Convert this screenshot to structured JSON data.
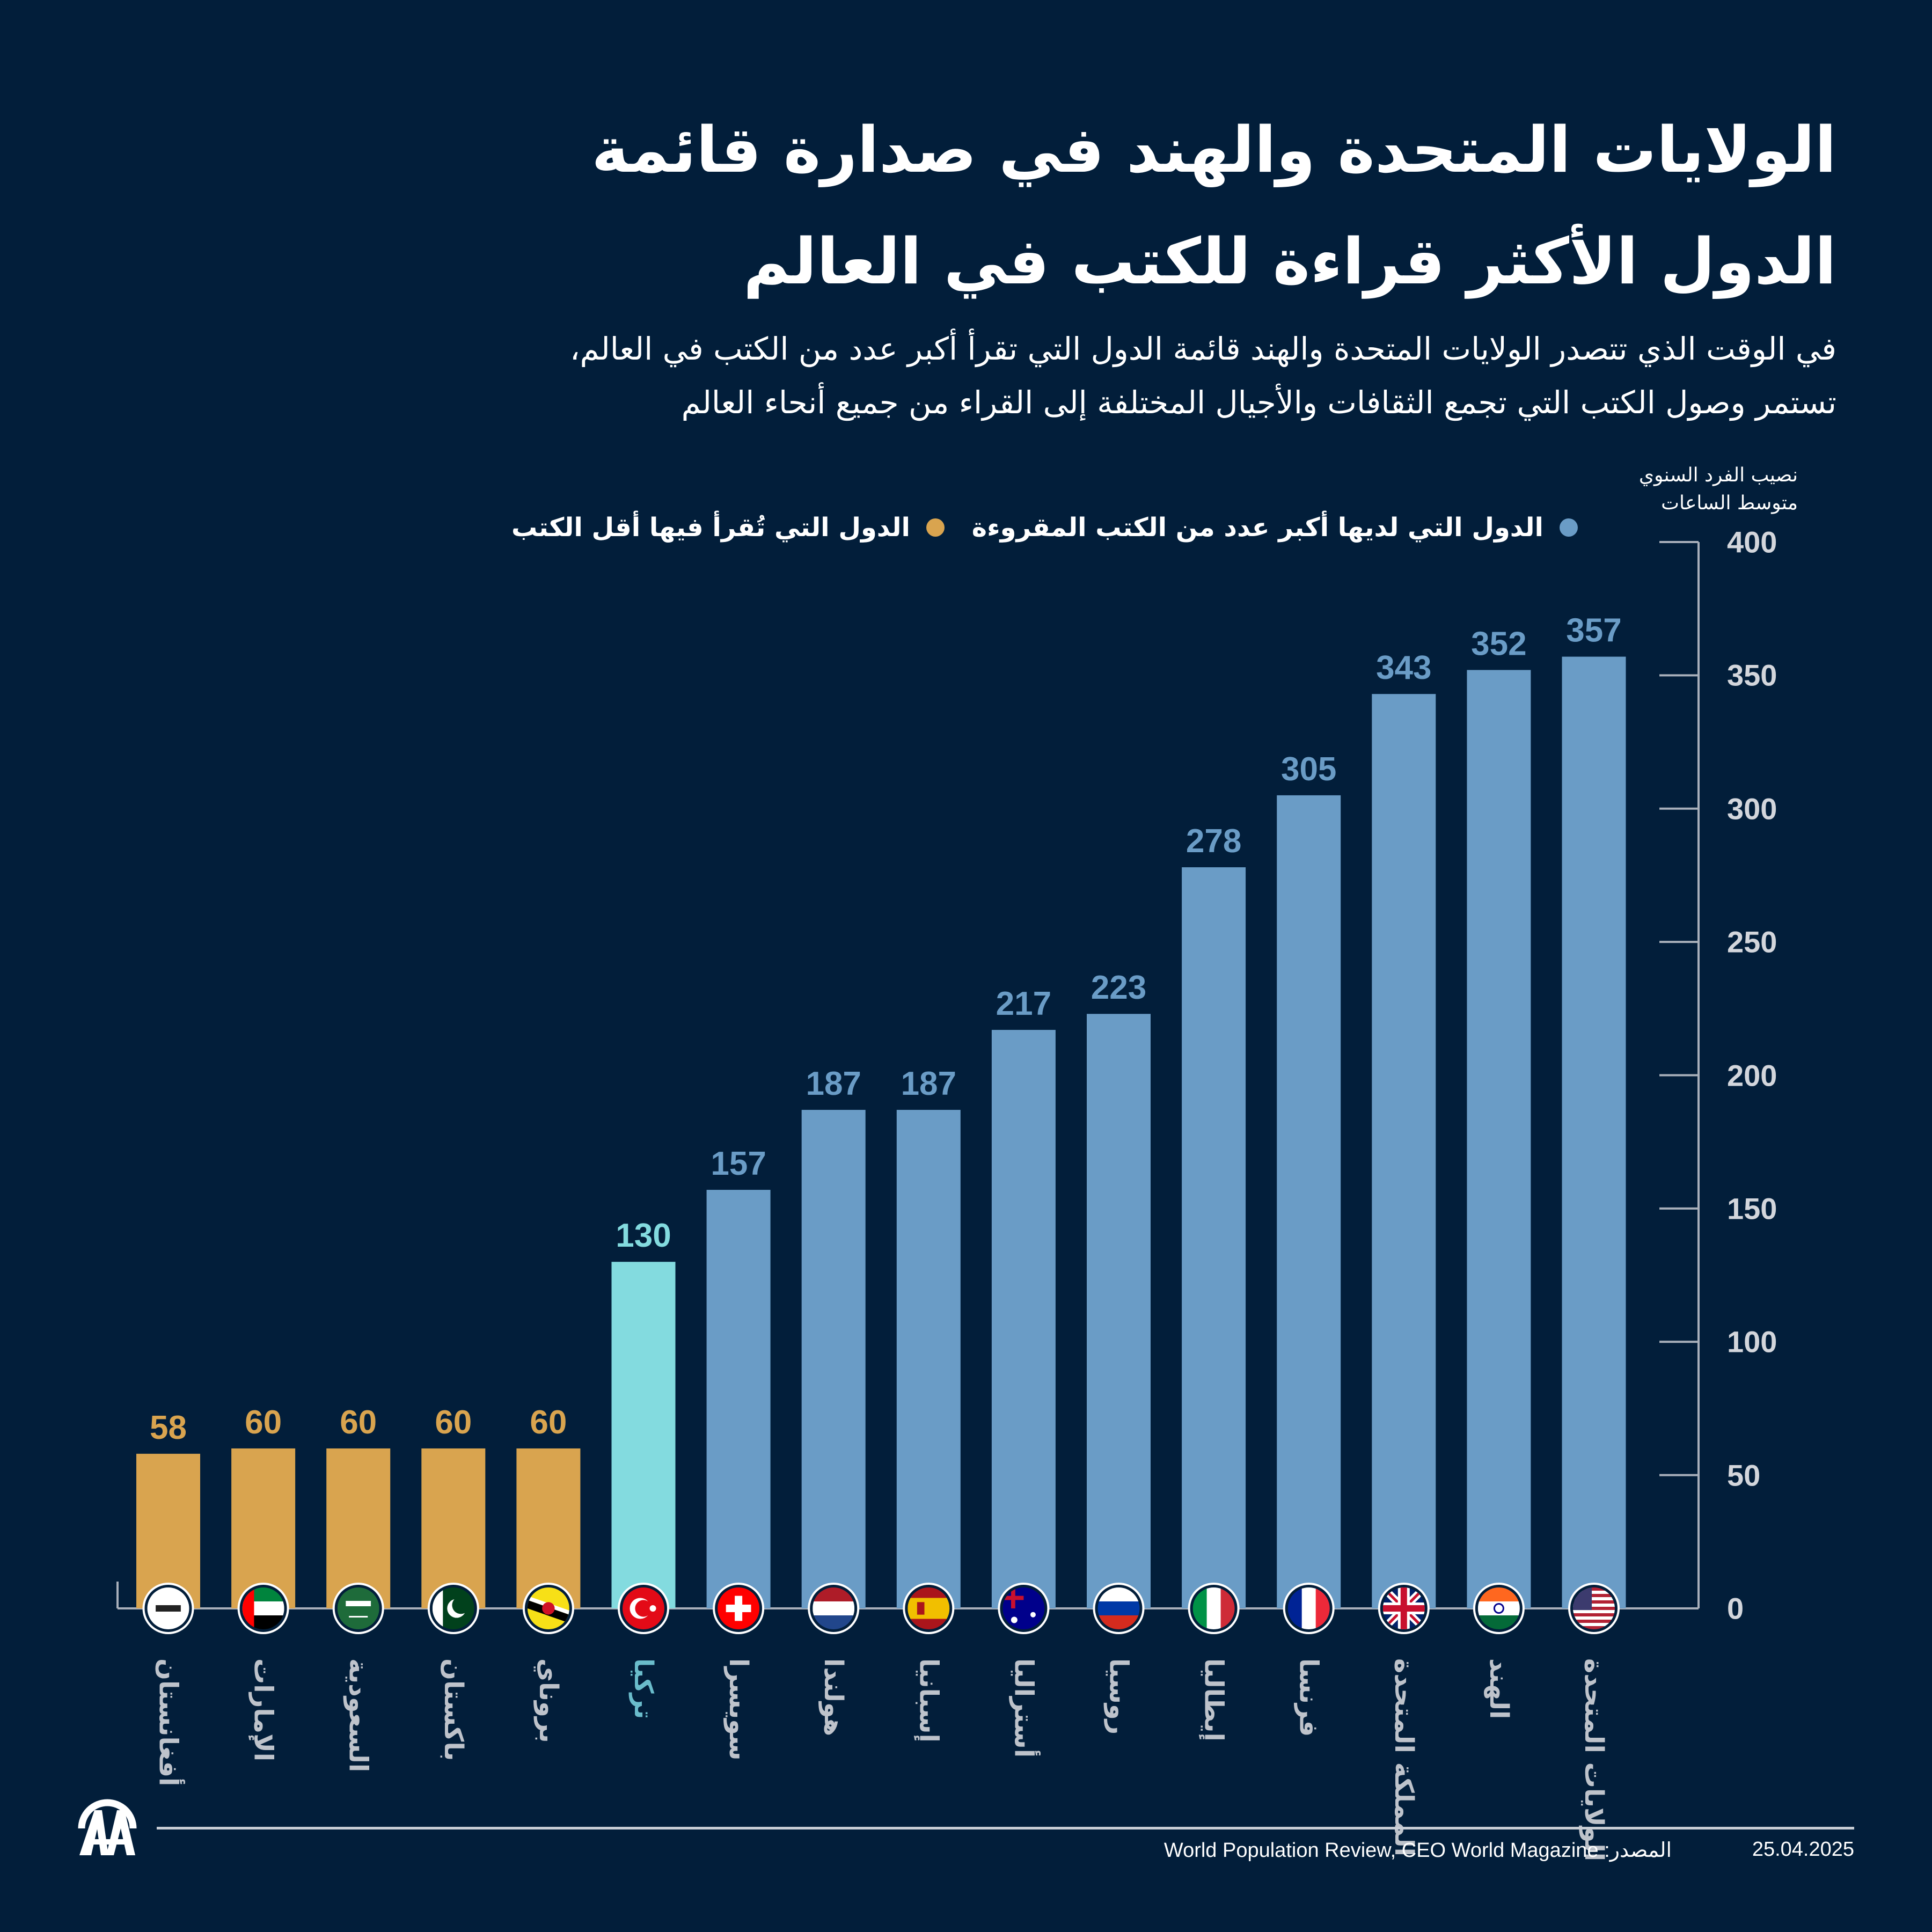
{
  "header": {
    "title_line1": "الولايات المتحدة والهند في صدارة قائمة",
    "title_line2": "الدول الأكثر قراءة للكتب في العالم",
    "subtitle_line1": "في الوقت الذي تتصدر الولايات المتحدة والهند قائمة الدول التي تقرأ أكبر عدد من الكتب في العالم،",
    "subtitle_line2": "تستمر وصول الكتب التي تجمع الثقافات والأجيال المختلفة إلى القراء من جميع أنحاء العالم"
  },
  "colors": {
    "background": "#021E3A",
    "most": "#6A9CC6",
    "least": "#D9A44F",
    "highlight": "#83DBDF",
    "highlight_label": "#6ABCCB",
    "axis": "#A9B0BB"
  },
  "chart_data": {
    "type": "bar",
    "title": "الولايات المتحدة والهند في صدارة قائمة الدول الأكثر قراءة للكتب في العالم",
    "ylabel_line1": "نصيب الفرد السنوي",
    "ylabel_line2": "متوسط الساعات",
    "xlabel": "",
    "ylim": [
      0,
      400
    ],
    "yticks": [
      0,
      50,
      100,
      150,
      200,
      250,
      300,
      350,
      400
    ],
    "y_axis_side": "right",
    "grid": false,
    "legend_position": "top",
    "legend": [
      {
        "label": "الدول التي لديها أكبر عدد من الكتب المقروءة",
        "group": "most"
      },
      {
        "label": "الدول التي تُقرأ فيها أقل الكتب",
        "group": "least"
      }
    ],
    "categories": [
      "أفغانستان",
      "الإمارات",
      "السعودية",
      "باكستان",
      "بروناي",
      "تركيا",
      "سويسرا",
      "هولندا",
      "إسبانيا",
      "أستراليا",
      "روسيا",
      "إيطاليا",
      "فرنسا",
      "المملكة المتحدة",
      "الهند",
      "الولايات المتحدة"
    ],
    "values": [
      58,
      60,
      60,
      60,
      60,
      130,
      157,
      187,
      187,
      217,
      223,
      278,
      305,
      343,
      352,
      357
    ],
    "groups": [
      "least",
      "least",
      "least",
      "least",
      "least",
      "highlight",
      "most",
      "most",
      "most",
      "most",
      "most",
      "most",
      "most",
      "most",
      "most",
      "most"
    ],
    "flags": [
      "flag-afghanistan-icon",
      "flag-uae-icon",
      "flag-saudi-arabia-icon",
      "flag-pakistan-icon",
      "flag-brunei-icon",
      "flag-turkey-icon",
      "flag-switzerland-icon",
      "flag-netherlands-icon",
      "flag-spain-icon",
      "flag-australia-icon",
      "flag-russia-icon",
      "flag-italy-icon",
      "flag-france-icon",
      "flag-uk-icon",
      "flag-india-icon",
      "flag-usa-icon"
    ]
  },
  "footer": {
    "source": "World Population Review, CEO World Magazine :المصدر",
    "date": "25.04.2025",
    "logo": "AA"
  }
}
